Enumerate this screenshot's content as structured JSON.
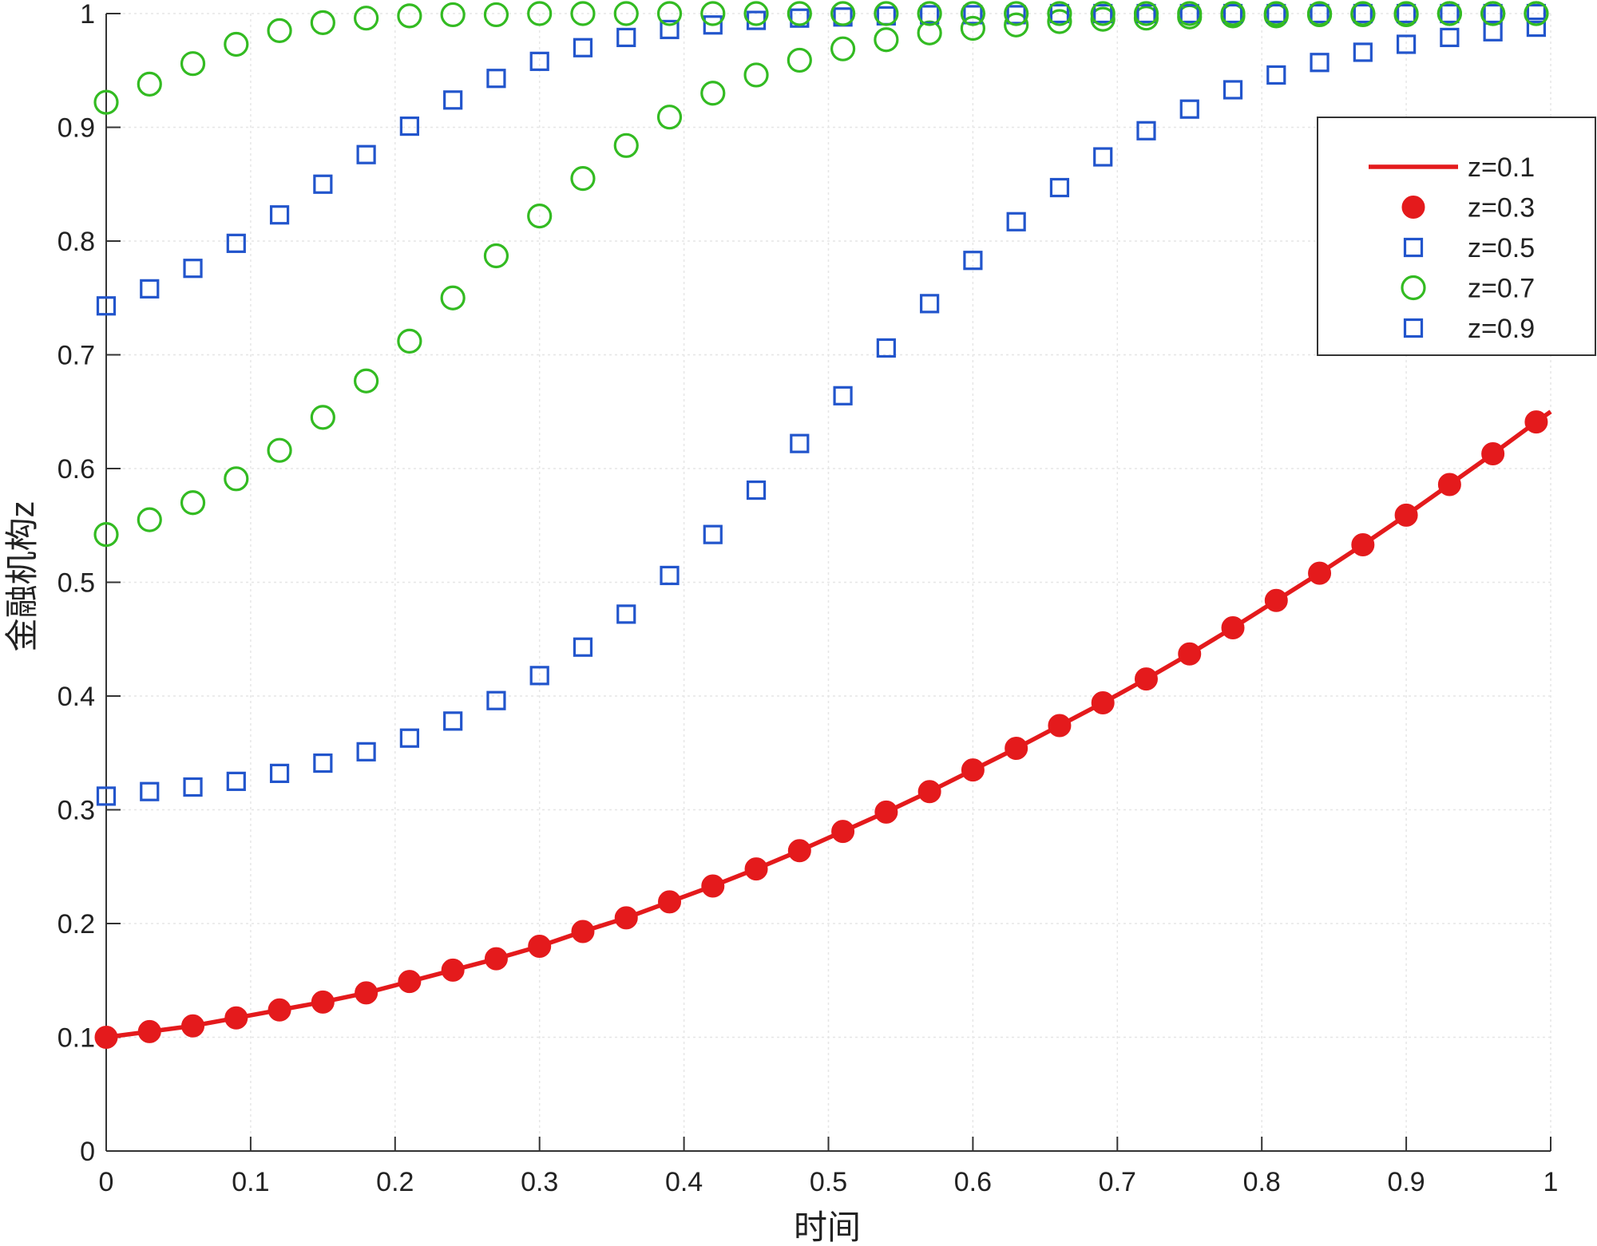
{
  "chart_data": {
    "type": "line",
    "title": "",
    "xlabel": "时间",
    "ylabel": "金融机构z",
    "xlim": [
      0,
      1
    ],
    "ylim": [
      0,
      1
    ],
    "xticks": [
      "0",
      "0.1",
      "0.2",
      "0.3",
      "0.4",
      "0.5",
      "0.6",
      "0.7",
      "0.8",
      "0.9",
      "1"
    ],
    "yticks": [
      "0",
      "0.1",
      "0.2",
      "0.3",
      "0.4",
      "0.5",
      "0.6",
      "0.7",
      "0.8",
      "0.9",
      "1"
    ],
    "grid": true,
    "legend_position": "top-right",
    "x": [
      0,
      0.03,
      0.06,
      0.09,
      0.12,
      0.15,
      0.18,
      0.21,
      0.24,
      0.27,
      0.3,
      0.33,
      0.36,
      0.39,
      0.42,
      0.45,
      0.48,
      0.51,
      0.54,
      0.57,
      0.6,
      0.63,
      0.66,
      0.69,
      0.72,
      0.75,
      0.78,
      0.81,
      0.84,
      0.87,
      0.9,
      0.93,
      0.96,
      0.99
    ],
    "series": [
      {
        "name": "z=0.1",
        "style": "line",
        "color": "#e41a1c",
        "x": [
          0,
          0.03,
          0.06,
          0.09,
          0.12,
          0.15,
          0.18,
          0.21,
          0.24,
          0.27,
          0.3,
          0.33,
          0.36,
          0.39,
          0.42,
          0.45,
          0.48,
          0.51,
          0.54,
          0.57,
          0.6,
          0.63,
          0.66,
          0.69,
          0.72,
          0.75,
          0.78,
          0.81,
          0.84,
          0.87,
          0.9,
          0.93,
          0.96,
          0.99,
          1.0
        ],
        "values": [
          0.1,
          0.105,
          0.11,
          0.117,
          0.124,
          0.131,
          0.139,
          0.149,
          0.159,
          0.169,
          0.18,
          0.193,
          0.205,
          0.219,
          0.233,
          0.248,
          0.264,
          0.281,
          0.298,
          0.316,
          0.335,
          0.354,
          0.374,
          0.394,
          0.415,
          0.437,
          0.46,
          0.484,
          0.508,
          0.533,
          0.559,
          0.586,
          0.613,
          0.641,
          0.65
        ]
      },
      {
        "name": "z=0.3",
        "style": "filled-circle",
        "color": "#e41a1c",
        "values": [
          0.1,
          0.105,
          0.11,
          0.117,
          0.124,
          0.131,
          0.139,
          0.149,
          0.159,
          0.169,
          0.18,
          0.193,
          0.205,
          0.219,
          0.233,
          0.248,
          0.264,
          0.281,
          0.298,
          0.316,
          0.335,
          0.354,
          0.374,
          0.394,
          0.415,
          0.437,
          0.46,
          0.484,
          0.508,
          0.533,
          0.559,
          0.586,
          0.613,
          0.641
        ]
      },
      {
        "name": "z=0.5",
        "style": "open-square",
        "color": "#2255cc",
        "values": [
          0.312,
          0.316,
          0.32,
          0.325,
          0.332,
          0.341,
          0.351,
          0.363,
          0.378,
          0.396,
          0.418,
          0.443,
          0.472,
          0.506,
          0.542,
          0.581,
          0.622,
          0.664,
          0.706,
          0.745,
          0.783,
          0.817,
          0.847,
          0.874,
          0.897,
          0.916,
          0.933,
          0.946,
          0.957,
          0.966,
          0.973,
          0.979,
          0.984,
          0.988
        ]
      },
      {
        "name": "z=0.7",
        "style": "open-circle",
        "color": "#33bb22",
        "values": [
          0.542,
          0.555,
          0.57,
          0.591,
          0.616,
          0.645,
          0.677,
          0.712,
          0.75,
          0.787,
          0.822,
          0.855,
          0.884,
          0.909,
          0.93,
          0.946,
          0.959,
          0.969,
          0.977,
          0.983,
          0.987,
          0.99,
          0.993,
          0.995,
          0.996,
          0.997,
          0.998,
          0.998,
          0.999,
          0.999,
          0.999,
          1.0,
          1.0,
          1.0
        ]
      },
      {
        "name": "z=0.9",
        "style": "open-square",
        "color": "#2255cc",
        "values": [
          0.743,
          0.758,
          0.776,
          0.798,
          0.823,
          0.85,
          0.876,
          0.901,
          0.924,
          0.943,
          0.958,
          0.97,
          0.979,
          0.986,
          0.99,
          0.994,
          0.996,
          0.997,
          0.998,
          0.999,
          0.999,
          0.999,
          1.0,
          1.0,
          1.0,
          1.0,
          1.0,
          1.0,
          1.0,
          1.0,
          1.0,
          1.0,
          1.0,
          1.0
        ]
      },
      {
        "name": "",
        "style": "open-circle",
        "color": "#33bb22",
        "values": [
          0.922,
          0.938,
          0.956,
          0.973,
          0.985,
          0.992,
          0.996,
          0.998,
          0.999,
          0.999,
          1.0,
          1.0,
          1.0,
          1.0,
          1.0,
          1.0,
          1.0,
          1.0,
          1.0,
          1.0,
          1.0,
          1.0,
          1.0,
          1.0,
          1.0,
          1.0,
          1.0,
          1.0,
          1.0,
          1.0,
          1.0,
          1.0,
          1.0,
          1.0
        ]
      }
    ],
    "legend": [
      "z=0.1",
      "z=0.3",
      "z=0.5",
      "z=0.7",
      "z=0.9"
    ]
  }
}
